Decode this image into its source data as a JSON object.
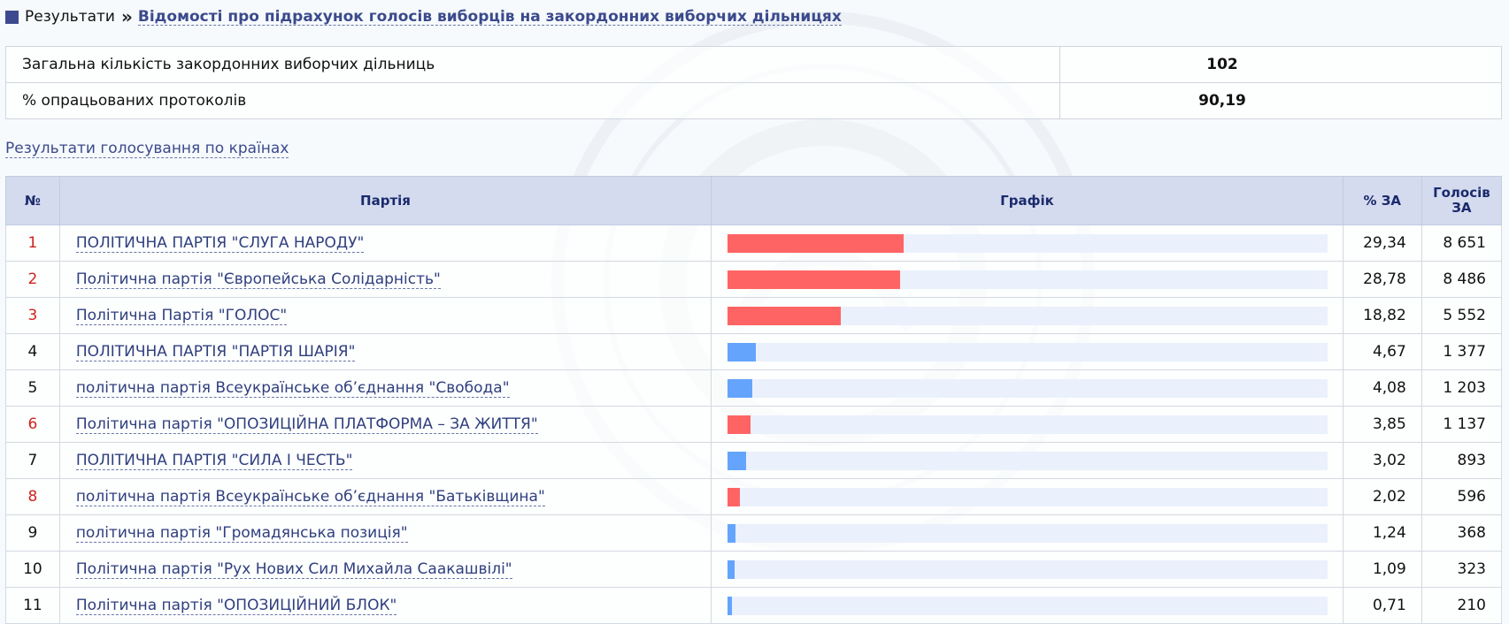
{
  "breadcrumb": {
    "root": "Результати",
    "current": "Відомості про підрахунок голосів виборців на закордонних виборчих дільницях"
  },
  "summary": [
    {
      "label": "Загальна кількість закордонних виборчих дільниць",
      "value": "102"
    },
    {
      "label": "% опрацьованих протоколів",
      "value": "90,19"
    }
  ],
  "country_link": "Результати голосування по країнах",
  "table": {
    "headers": {
      "num": "№",
      "party": "Партія",
      "graph": "Графік",
      "pct": "% ЗА",
      "votes_line1": "Голосів",
      "votes_line2": "ЗА"
    },
    "rows": [
      {
        "num": "1",
        "party": "ПОЛІТИЧНА ПАРТІЯ \"СЛУГА НАРОДУ\"",
        "pct": "29,34",
        "votes": "8 651",
        "share": 29.34,
        "highlight": true
      },
      {
        "num": "2",
        "party": "Політична партія \"Європейська Солідарність\"",
        "pct": "28,78",
        "votes": "8 486",
        "share": 28.78,
        "highlight": true
      },
      {
        "num": "3",
        "party": "Політична Партія \"ГОЛОС\"",
        "pct": "18,82",
        "votes": "5 552",
        "share": 18.82,
        "highlight": true
      },
      {
        "num": "4",
        "party": "ПОЛІТИЧНА ПАРТІЯ \"ПАРТІЯ ШАРІЯ\"",
        "pct": "4,67",
        "votes": "1 377",
        "share": 4.67,
        "highlight": false
      },
      {
        "num": "5",
        "party": "політична партія Всеукраїнське об’єднання \"Свобода\"",
        "pct": "4,08",
        "votes": "1 203",
        "share": 4.08,
        "highlight": false
      },
      {
        "num": "6",
        "party": "Політична партія \"ОПОЗИЦІЙНА ПЛАТФОРМА – ЗА ЖИТТЯ\"",
        "pct": "3,85",
        "votes": "1 137",
        "share": 3.85,
        "highlight": true
      },
      {
        "num": "7",
        "party": "ПОЛІТИЧНА ПАРТІЯ \"СИЛА І ЧЕСТЬ\"",
        "pct": "3,02",
        "votes": "893",
        "share": 3.02,
        "highlight": false
      },
      {
        "num": "8",
        "party": "політична партія Всеукраїнське об’єднання \"Батьківщина\"",
        "pct": "2,02",
        "votes": "596",
        "share": 2.02,
        "highlight": true
      },
      {
        "num": "9",
        "party": "політична партія \"Громадянська позиція\"",
        "pct": "1,24",
        "votes": "368",
        "share": 1.24,
        "highlight": false
      },
      {
        "num": "10",
        "party": "Політична партія \"Рух Нових Сил Михайла Саакашвілі\"",
        "pct": "1,09",
        "votes": "323",
        "share": 1.09,
        "highlight": false
      },
      {
        "num": "11",
        "party": "Політична партія \"ОПОЗИЦІЙНИЙ БЛОК\"",
        "pct": "0,71",
        "votes": "210",
        "share": 0.71,
        "highlight": false
      }
    ]
  },
  "colors": {
    "highlight_bar": "#ff6464",
    "normal_bar": "#64a4fc",
    "highlight_num": "#d0241d",
    "normal_num": "#111111"
  },
  "bar_scale_max": 100
}
